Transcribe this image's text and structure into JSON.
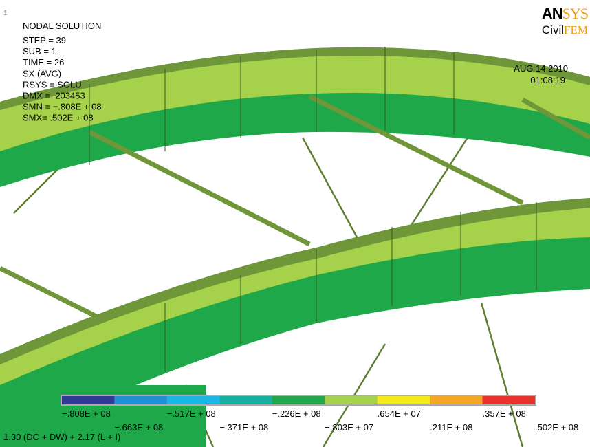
{
  "corner_number": "1",
  "header": {
    "title": "NODAL SOLUTION",
    "info": [
      "STEP = 39",
      "SUB = 1",
      "TIME = 26",
      "SX (AVG)",
      "RSYS = SOLU",
      "DMX = .203453",
      "SMN = −.808E + 08",
      "SMX= .502E + 08"
    ]
  },
  "logo": {
    "ansys": [
      "AN",
      "SYS"
    ],
    "civilfem": [
      "Civil",
      "FEM"
    ]
  },
  "date": "AUG 14 2010",
  "time": "01:08:19",
  "legend": {
    "colors": [
      "#2e3b96",
      "#1f8fd6",
      "#19b6e6",
      "#16b0a0",
      "#1fa84a",
      "#a6d14a",
      "#f2ea1c",
      "#f5a623",
      "#e8302c"
    ],
    "labels": [
      "−.808E + 08",
      "−.663E + 08",
      "−.517E + 08",
      "−.371E + 08",
      "−.226E + 08",
      "−.803E + 07",
      ".654E + 07",
      ".211E + 08",
      ".357E + 08",
      ".502E + 08"
    ]
  },
  "caption": "1.30 (DC + DW) + 2.17 (L + I)"
}
